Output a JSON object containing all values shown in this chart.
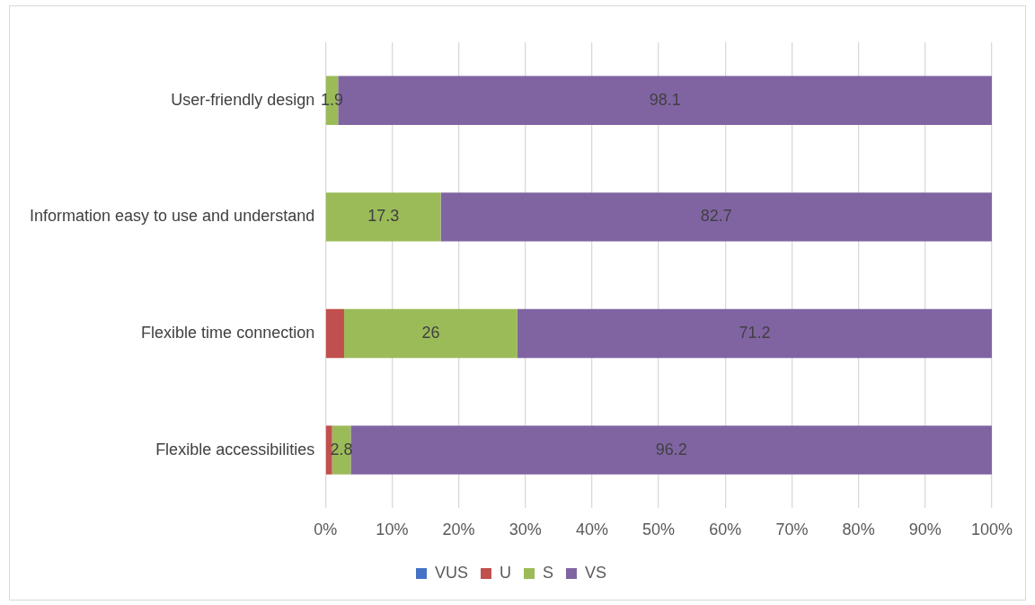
{
  "chart_data": {
    "type": "bar",
    "orientation": "horizontal",
    "stacked": true,
    "categories": [
      "User-friendly design",
      "Information easy to use and understand",
      "Flexible time connection",
      "Flexible accessibilities"
    ],
    "series": [
      {
        "name": "VUS",
        "color": "#4472c4",
        "values": [
          0,
          0,
          0,
          0
        ],
        "value_labels": [
          null,
          null,
          null,
          null
        ]
      },
      {
        "name": "U",
        "color": "#c0504d",
        "values": [
          0,
          0,
          2.8,
          1.0
        ],
        "value_labels": [
          null,
          null,
          null,
          null
        ]
      },
      {
        "name": "S",
        "color": "#9bbb59",
        "values": [
          1.9,
          17.3,
          26,
          2.8
        ],
        "value_labels": [
          "1.9",
          "17.3",
          "26",
          "2.8"
        ]
      },
      {
        "name": "VS",
        "color": "#8064a2",
        "values": [
          98.1,
          82.7,
          71.2,
          96.2
        ],
        "value_labels": [
          "98.1",
          "82.7",
          "71.2",
          "96.2"
        ]
      }
    ],
    "xlim": [
      0,
      100
    ],
    "xticks": [
      {
        "value": 0,
        "label": "0%"
      },
      {
        "value": 10,
        "label": "10%"
      },
      {
        "value": 20,
        "label": "20%"
      },
      {
        "value": 30,
        "label": "30%"
      },
      {
        "value": 40,
        "label": "40%"
      },
      {
        "value": 50,
        "label": "50%"
      },
      {
        "value": 60,
        "label": "60%"
      },
      {
        "value": 70,
        "label": "70%"
      },
      {
        "value": 80,
        "label": "80%"
      },
      {
        "value": 90,
        "label": "90%"
      },
      {
        "value": 100,
        "label": "100%"
      }
    ],
    "grid": "x",
    "legend": "bottom"
  }
}
